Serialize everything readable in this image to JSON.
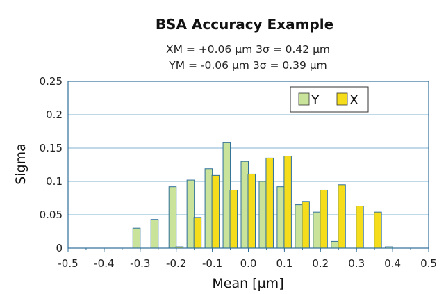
{
  "chart_data": {
    "type": "bar",
    "title": "BSA Accuracy Example",
    "subtitle_lines": [
      "XM = +0.06 µm 3σ = 0.42 µm",
      "YM = -0.06 µm 3σ = 0.39 µm"
    ],
    "xlabel": "Mean [µm]",
    "ylabel": "Sigma",
    "xlim": [
      -0.5,
      0.5
    ],
    "ylim": [
      0,
      0.25
    ],
    "x_ticks": [
      "-0.5",
      "-0.4",
      "-0.3",
      "-0.2",
      "-0.1",
      "0.0",
      "0.1",
      "0.2",
      "0.3",
      "0.4",
      "0.5"
    ],
    "y_ticks": [
      "0",
      "0.05",
      "0.1",
      "0.15",
      "0.2",
      "0.25"
    ],
    "grid": true,
    "legend_position": "top-right",
    "x": [
      -0.45,
      -0.4,
      -0.35,
      -0.3,
      -0.25,
      -0.2,
      -0.15,
      -0.1,
      -0.05,
      0.0,
      0.05,
      0.1,
      0.15,
      0.2,
      0.25,
      0.3,
      0.35,
      0.4,
      0.45
    ],
    "series": [
      {
        "name": "Y",
        "color": "#c9e39b",
        "values": [
          0,
          0,
          0,
          0.03,
          0.043,
          0.092,
          0.102,
          0.119,
          0.158,
          0.13,
          0.1,
          0.092,
          0.065,
          0.054,
          0.01,
          0,
          0,
          0.002,
          0
        ]
      },
      {
        "name": "X",
        "color": "#f6dd1c",
        "values": [
          0,
          0,
          0,
          0,
          0,
          0.002,
          0.046,
          0.109,
          0.087,
          0.111,
          0.135,
          0.138,
          0.07,
          0.087,
          0.095,
          0.063,
          0.054,
          0,
          0
        ]
      }
    ]
  }
}
